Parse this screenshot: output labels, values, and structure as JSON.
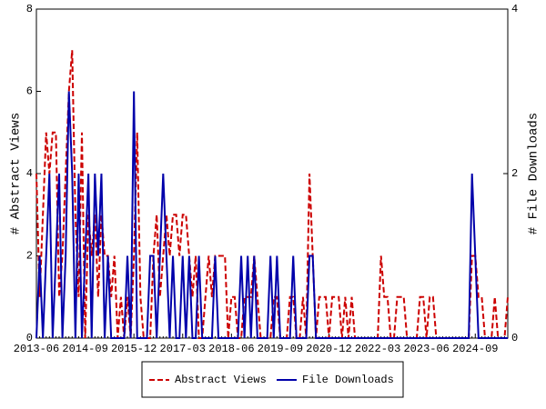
{
  "chart_data": {
    "type": "line",
    "y_label": "# Abstract Views",
    "y2_label": "# File Downloads",
    "categories": [
      "2013-06",
      null,
      null,
      null,
      null,
      null,
      null,
      null,
      null,
      null,
      null,
      null,
      null,
      null,
      null,
      "2014-09",
      null,
      null,
      null,
      null,
      null,
      null,
      null,
      null,
      null,
      null,
      null,
      null,
      null,
      null,
      "2015-12",
      null,
      null,
      null,
      null,
      null,
      null,
      null,
      null,
      null,
      null,
      null,
      null,
      null,
      null,
      "2017-03",
      null,
      null,
      null,
      null,
      null,
      null,
      null,
      null,
      null,
      null,
      null,
      null,
      null,
      null,
      "2018-06",
      null,
      null,
      null,
      null,
      null,
      null,
      null,
      null,
      null,
      null,
      null,
      null,
      null,
      null,
      "2019-09",
      null,
      null,
      null,
      null,
      null,
      null,
      null,
      null,
      null,
      null,
      null,
      null,
      null,
      null,
      "2020-12",
      null,
      null,
      null,
      null,
      null,
      null,
      null,
      null,
      null,
      null,
      null,
      null,
      null,
      null,
      "2022-03",
      null,
      null,
      null,
      null,
      null,
      null,
      null,
      null,
      null,
      null,
      null,
      null,
      null,
      null,
      "2023-06",
      null,
      null,
      null,
      null,
      null,
      null,
      null,
      null,
      null,
      null,
      null,
      null,
      null,
      null,
      "2024-09",
      null,
      null,
      null,
      null,
      null,
      null,
      null,
      null,
      null,
      null
    ],
    "series": [
      {
        "name": "Abstract Views",
        "color": "#cc0000",
        "dashed": true,
        "values": [
          4,
          1,
          3,
          5,
          4,
          5,
          5,
          1,
          2,
          4,
          6,
          7,
          3,
          1,
          5,
          0,
          3,
          2,
          3,
          1,
          3,
          2,
          2,
          1,
          2,
          0,
          1,
          0,
          1,
          0,
          2,
          5,
          1,
          0,
          0,
          0,
          2,
          3,
          1,
          2,
          3,
          2,
          3,
          3,
          2,
          3,
          3,
          2,
          1,
          2,
          0,
          0,
          1,
          2,
          1,
          2,
          2,
          2,
          2,
          0,
          1,
          1,
          0,
          0,
          1,
          1,
          1,
          2,
          1,
          0,
          0,
          0,
          0,
          1,
          1,
          0,
          0,
          0,
          1,
          1,
          0,
          0,
          1,
          0,
          4,
          2,
          0,
          1,
          1,
          1,
          0,
          1,
          1,
          1,
          0,
          1,
          0,
          1,
          0,
          0,
          0,
          0,
          0,
          0,
          0,
          0,
          2,
          1,
          1,
          0,
          0,
          1,
          1,
          1,
          0,
          0,
          0,
          0,
          1,
          1,
          0,
          1,
          1,
          0,
          0,
          0,
          0,
          0,
          0,
          0,
          0,
          0,
          0,
          0,
          2,
          2,
          1,
          1,
          0,
          0,
          0,
          1,
          0,
          0,
          0,
          1
        ]
      },
      {
        "name": "File Downloads",
        "color": "#0000aa",
        "dashed": false,
        "axis": "y2",
        "values": [
          0,
          1,
          0,
          1,
          2,
          0,
          1,
          2,
          0,
          1,
          3,
          2,
          0,
          2,
          0,
          1,
          2,
          0,
          2,
          1,
          2,
          0,
          1,
          0,
          0,
          0,
          0,
          0,
          1,
          0,
          3,
          0,
          0,
          0,
          0,
          1,
          1,
          0,
          1,
          2,
          1,
          0,
          1,
          0,
          0,
          1,
          0,
          1,
          0,
          0,
          1,
          0,
          0,
          0,
          0,
          1,
          0,
          0,
          0,
          0,
          0,
          0,
          0,
          1,
          0,
          1,
          0,
          1,
          0,
          0,
          0,
          0,
          1,
          0,
          1,
          0,
          0,
          0,
          0,
          1,
          0,
          0,
          0,
          0,
          1,
          1,
          0,
          0,
          0,
          0,
          0,
          0,
          0,
          0,
          0,
          0,
          0,
          0,
          0,
          0,
          0,
          0,
          0,
          0,
          0,
          0,
          0,
          0,
          0,
          0,
          0,
          0,
          0,
          0,
          0,
          0,
          0,
          0,
          0,
          0,
          0,
          0,
          0,
          0,
          0,
          0,
          0,
          0,
          0,
          0,
          0,
          0,
          0,
          0,
          2,
          1,
          0,
          0,
          0,
          0,
          0,
          0,
          0,
          0,
          0,
          0
        ]
      }
    ],
    "ylim": [
      0,
      8
    ],
    "yticks": [
      0,
      2,
      4,
      6,
      8
    ],
    "y2lim": [
      0,
      4
    ],
    "y2ticks": [
      0,
      2,
      4
    ],
    "legend": "bottom"
  }
}
